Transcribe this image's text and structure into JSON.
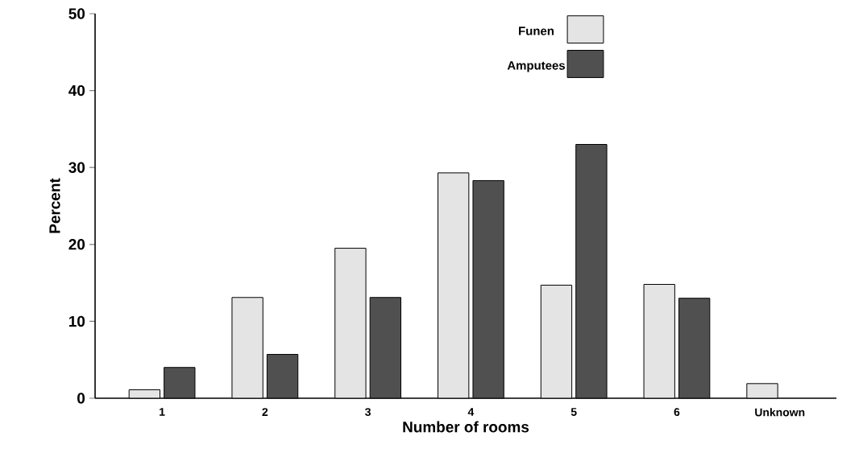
{
  "chart_data": {
    "type": "bar",
    "xlabel": "Number of rooms",
    "ylabel": "Percent",
    "categories": [
      "1",
      "2",
      "3",
      "4",
      "5",
      "6",
      "Unknown"
    ],
    "series": [
      {
        "name": "Funen",
        "color": "#e4e4e4",
        "values": [
          1.1,
          13.1,
          19.5,
          29.3,
          14.7,
          14.8,
          1.9
        ]
      },
      {
        "name": "Amputees",
        "color": "#505050",
        "values": [
          4.0,
          5.7,
          13.1,
          28.3,
          33.0,
          13.0,
          null
        ]
      }
    ],
    "ylim": [
      0,
      50
    ],
    "yticks": [
      0,
      10,
      20,
      30,
      40,
      50
    ],
    "grid": false,
    "legend": "top"
  }
}
